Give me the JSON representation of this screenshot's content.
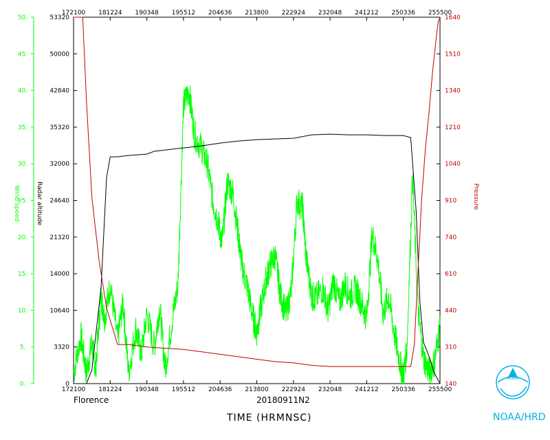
{
  "colors": {
    "wind": "#00ff00",
    "altitude": "#000000",
    "pressure": "#c00000",
    "logo": "#00b0e0",
    "frame": "#000000"
  },
  "chart_data": {
    "type": "line",
    "title": "",
    "storm": "Florence",
    "flight_id": "20180911N2",
    "xlabel": "TIME (HRMNSC)",
    "x_ticks": [
      "172100",
      "181224",
      "190348",
      "195512",
      "204636",
      "213800",
      "222924",
      "232048",
      "241212",
      "250336",
      "255500"
    ],
    "y_axes": {
      "wind": {
        "label": "Wind speed",
        "ticks": [
          "0.",
          "5.",
          "10.",
          "15.",
          "20.",
          "25.",
          "30.",
          "35.",
          "40.",
          "45.",
          "50."
        ],
        "ylim": [
          0,
          50
        ]
      },
      "altitude": {
        "label": "Radar altitude",
        "ticks": [
          "0",
          "3320",
          "10640",
          "14000",
          "21320",
          "24640",
          "32000",
          "35320",
          "42840",
          "50000",
          "53320"
        ]
      },
      "pressure": {
        "label": "Pressure",
        "ticks": [
          "140",
          "310",
          "440",
          "610",
          "740",
          "910",
          "1040",
          "1210",
          "1340",
          "1510",
          "1640"
        ],
        "ylim": [
          140,
          1640
        ]
      }
    },
    "series": [
      {
        "key": "wind",
        "axis": "wind",
        "x": [
          0,
          0.2,
          0.35,
          0.5,
          0.6,
          0.75,
          0.85,
          1.0,
          1.2,
          1.35,
          1.5,
          1.7,
          1.85,
          2.0,
          2.2,
          2.35,
          2.5,
          2.7,
          2.85,
          3.0,
          3.15,
          3.3,
          3.5,
          3.65,
          3.8,
          3.95,
          4.05,
          4.2,
          4.35,
          4.5,
          4.6,
          4.75,
          4.9,
          5.0,
          5.1,
          5.25,
          5.35,
          5.5,
          5.65,
          5.8,
          5.95,
          6.1,
          6.25,
          6.35,
          6.5,
          6.6,
          6.8,
          6.95,
          7.1,
          7.25,
          7.4,
          7.55,
          7.7,
          7.85,
          8.0,
          8.15,
          8.3,
          8.45,
          8.6,
          8.75,
          8.9,
          9.0,
          9.1,
          9.25,
          9.4,
          9.55,
          9.7,
          9.85,
          10.0
        ],
        "y": [
          1.5,
          6.5,
          1.5,
          5.5,
          2.0,
          12.0,
          9.0,
          13.5,
          6.0,
          11.0,
          1.5,
          7.5,
          4.0,
          9.5,
          5.0,
          10.5,
          2.0,
          9.0,
          13.5,
          38.0,
          40.0,
          34.0,
          32.0,
          30.0,
          25.0,
          22.0,
          19.0,
          27.5,
          26.0,
          20.0,
          16.0,
          13.0,
          9.0,
          7.0,
          10.0,
          14.0,
          16.0,
          17.5,
          12.0,
          9.5,
          13.0,
          25.0,
          24.0,
          17.0,
          12.0,
          11.5,
          13.0,
          10.0,
          14.0,
          11.0,
          13.5,
          12.0,
          13.0,
          11.0,
          9.0,
          20.5,
          17.0,
          9.5,
          12.0,
          7.0,
          3.0,
          1.0,
          5.0,
          28.5,
          10.0,
          3.5,
          1.5,
          3.0,
          8.0
        ]
      },
      {
        "key": "altitude",
        "axis": "altitude",
        "x": [
          0,
          0.35,
          0.5,
          0.75,
          0.9,
          1.0,
          1.2,
          1.5,
          2.0,
          2.2,
          2.5,
          3.0,
          3.5,
          4.0,
          4.5,
          5.0,
          5.5,
          6.0,
          6.5,
          7.0,
          7.5,
          8.0,
          8.5,
          9.0,
          9.2,
          9.35,
          9.45,
          9.55,
          9.7,
          9.85,
          9.95,
          10.0
        ],
        "y": [
          0,
          0,
          2000,
          14000,
          30000,
          33000,
          33000,
          33200,
          33400,
          33800,
          34000,
          34300,
          34600,
          35000,
          35300,
          35500,
          35600,
          35700,
          36200,
          36300,
          36200,
          36200,
          36100,
          36100,
          35800,
          25000,
          12000,
          6000,
          4000,
          1500,
          500,
          0
        ]
      },
      {
        "key": "pressure",
        "axis": "pressure",
        "x": [
          0,
          0.2,
          0.25,
          0.35,
          0.5,
          0.7,
          0.9,
          1.1,
          1.2,
          1.5,
          2.0,
          2.5,
          3.0,
          3.5,
          4.0,
          4.5,
          5.0,
          5.5,
          6.0,
          6.5,
          7.0,
          7.5,
          8.0,
          8.5,
          9.0,
          9.2,
          9.3,
          9.4,
          9.5,
          9.6,
          9.7,
          9.8,
          9.9,
          9.95,
          10.0
        ],
        "y": [
          1640,
          1640,
          1640,
          1300,
          900,
          640,
          450,
          350,
          300,
          300,
          290,
          285,
          280,
          270,
          260,
          250,
          240,
          230,
          225,
          215,
          210,
          210,
          210,
          210,
          210,
          210,
          300,
          600,
          900,
          1100,
          1250,
          1420,
          1560,
          1620,
          1640
        ]
      }
    ],
    "grid": false,
    "legend": "none"
  },
  "footer": {
    "storm_label": "Florence",
    "flight_label": "20180911N2",
    "time_label": "TIME (HRMNSC)",
    "org_label": "NOAA/HRD"
  }
}
